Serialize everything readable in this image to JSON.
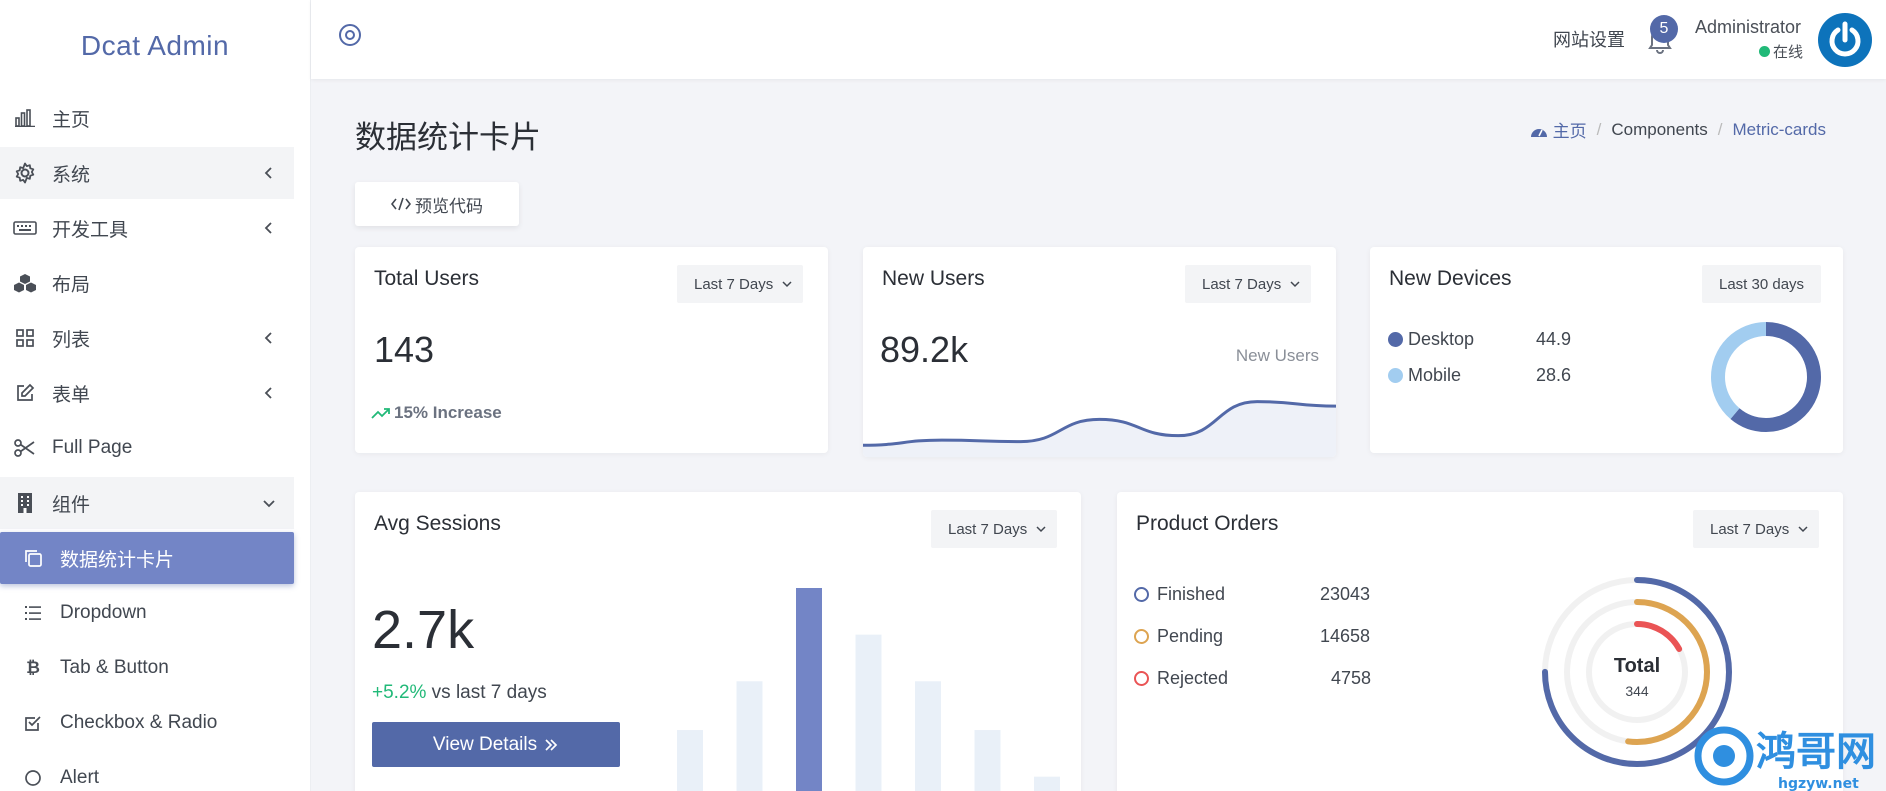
{
  "app": {
    "logo": "Dcat Admin"
  },
  "sidebar": {
    "items": [
      {
        "label": "主页",
        "icon": "bar-chart-icon"
      },
      {
        "label": "系统",
        "icon": "gear-icon"
      },
      {
        "label": "开发工具",
        "icon": "keyboard-icon"
      },
      {
        "label": "布局",
        "icon": "cubes-icon"
      },
      {
        "label": "列表",
        "icon": "grid-icon"
      },
      {
        "label": "表单",
        "icon": "edit-icon"
      },
      {
        "label": "Full Page",
        "icon": "scissors-icon"
      },
      {
        "label": "组件",
        "icon": "building-icon"
      },
      {
        "label": "数据统计卡片",
        "icon": "copy-icon"
      },
      {
        "label": "Dropdown",
        "icon": "list-icon"
      },
      {
        "label": "Tab & Button",
        "icon": "bitcoin-icon"
      },
      {
        "label": "Checkbox & Radio",
        "icon": "check-square-icon"
      },
      {
        "label": "Alert",
        "icon": "circle-icon"
      }
    ]
  },
  "header": {
    "site_settings": "网站设置",
    "notifications_count": "5",
    "user_name": "Administrator",
    "user_status": "在线"
  },
  "page": {
    "title": "数据统计卡片",
    "breadcrumb": {
      "home": "主页",
      "section": "Components",
      "current": "Metric-cards"
    },
    "code_button": "预览代码"
  },
  "cards": {
    "total_users": {
      "title": "Total Users",
      "filter": "Last 7 Days",
      "value": "143",
      "increase": "15% Increase"
    },
    "new_users": {
      "title": "New Users",
      "filter": "Last 7 Days",
      "value": "89.2k",
      "caption": "New Users"
    },
    "new_devices": {
      "title": "New Devices",
      "filter": "Last 30 days",
      "items": [
        {
          "label": "Desktop",
          "value": "44.9"
        },
        {
          "label": "Mobile",
          "value": "28.6"
        }
      ]
    },
    "avg_sessions": {
      "title": "Avg Sessions",
      "filter": "Last 7 Days",
      "value": "2.7k",
      "change": "+5.2%",
      "change_suffix": " vs last 7 days",
      "button": "View Details"
    },
    "product_orders": {
      "title": "Product Orders",
      "filter": "Last 7 Days",
      "items": [
        {
          "label": "Finished",
          "value": "23043"
        },
        {
          "label": "Pending",
          "value": "14658"
        },
        {
          "label": "Rejected",
          "value": "4758"
        }
      ],
      "total_label": "Total",
      "total_value": "344"
    }
  },
  "watermark": {
    "text": "鸿哥网",
    "sub": "hgzyw.net"
  },
  "colors": {
    "primary": "#5369a8",
    "primary_light": "#7385c6",
    "success": "#21b978",
    "sky": "#a2cdf0",
    "warning": "#dda451",
    "danger": "#ea5455",
    "track": "#e9f0f8"
  },
  "chart_data": [
    {
      "type": "area",
      "series": [
        {
          "values": [
            0.05,
            0.12,
            0.1,
            0.4,
            0.18,
            0.64,
            0.58
          ]
        }
      ]
    },
    {
      "type": "pie",
      "categories": [
        "Desktop",
        "Mobile"
      ],
      "values": [
        44.9,
        28.6
      ]
    },
    {
      "type": "bar",
      "values": [
        0.33,
        0.56,
        1.0,
        0.78,
        0.56,
        0.33,
        0.11
      ]
    },
    {
      "type": "pie",
      "categories": [
        "Finished",
        "Pending",
        "Rejected"
      ],
      "values": [
        23043,
        14658,
        4758
      ]
    }
  ]
}
